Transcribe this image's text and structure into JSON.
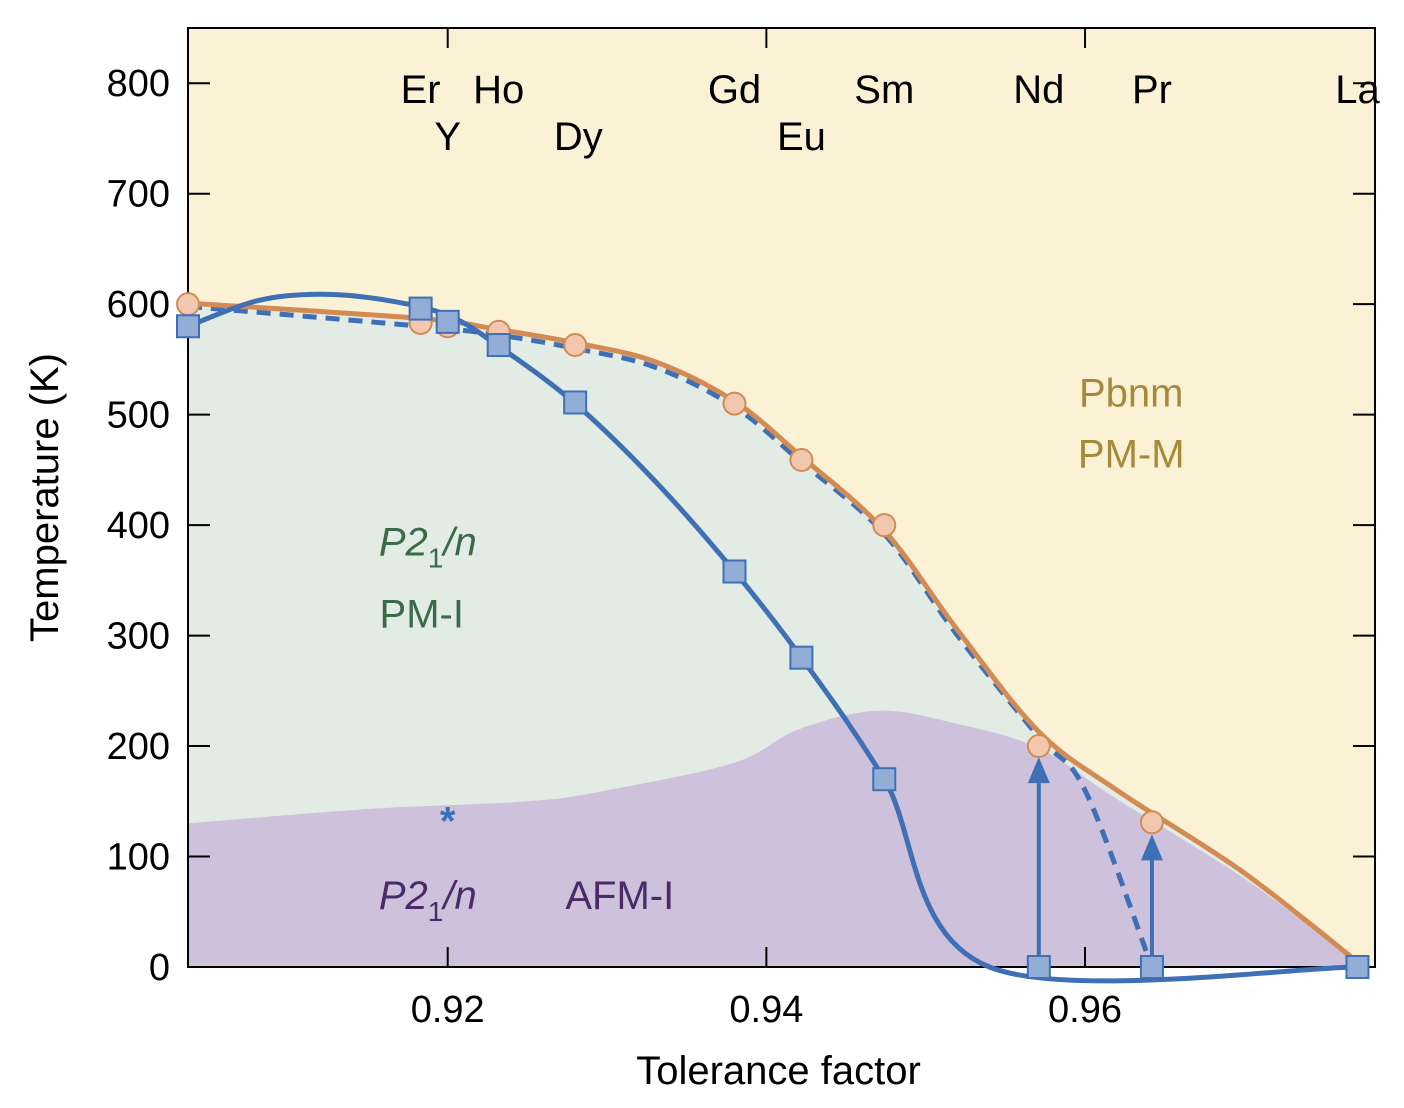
{
  "chart_data": {
    "type": "line",
    "xlabel": "Tolerance factor",
    "ylabel": "Temperature (K)",
    "xlim": [
      0.9037,
      0.9782
    ],
    "ylim": [
      0,
      850
    ],
    "x_ticks": [
      0.92,
      0.94,
      0.96
    ],
    "x_tick_labels": [
      "0.92",
      "0.94",
      "0.96"
    ],
    "y_ticks": [
      0,
      100,
      200,
      300,
      400,
      500,
      600,
      700,
      800
    ],
    "y_tick_labels": [
      "0",
      "100",
      "200",
      "300",
      "400",
      "500",
      "600",
      "700",
      "800"
    ],
    "element_labels": [
      {
        "text": "Er",
        "x": 0.9183,
        "row": 1
      },
      {
        "text": "Ho",
        "x": 0.9232,
        "row": 1
      },
      {
        "text": "Gd",
        "x": 0.938,
        "row": 1
      },
      {
        "text": "Sm",
        "x": 0.9474,
        "row": 1
      },
      {
        "text": "Nd",
        "x": 0.9571,
        "row": 1
      },
      {
        "text": "Pr",
        "x": 0.9642,
        "row": 1
      },
      {
        "text": "La",
        "x": 0.9771,
        "row": 1
      },
      {
        "text": "Y",
        "x": 0.92,
        "row": 2
      },
      {
        "text": "Dy",
        "x": 0.9282,
        "row": 2
      },
      {
        "text": "Eu",
        "x": 0.9422,
        "row": 2
      }
    ],
    "regions": [
      {
        "id": "pbnm",
        "lines": [
          "Pbnm",
          "PM-M"
        ],
        "color": "#A7893A",
        "x": 0.9629,
        "y": [
          520,
          465
        ]
      },
      {
        "id": "p21n-pmi",
        "lines": [
          "P2",
          "1",
          "/n",
          "PM-I"
        ],
        "color": "#3A6B48",
        "x": 0.919,
        "y": [
          385,
          320
        ]
      },
      {
        "id": "p21n-afmi",
        "lines": [
          "P2",
          "1",
          "/n",
          "AFM-I"
        ],
        "color": "#4A2B68",
        "x": 0.919,
        "y": [
          65,
          65
        ]
      }
    ],
    "annotation_star": {
      "text": "*",
      "x": 0.92,
      "y": 140
    },
    "colors": {
      "pm_m_background": "#FBF2D6",
      "pm_i_region": "#E3ECE4",
      "afm_i_region": "#CEC1DB",
      "orange_line": "#D38B54",
      "blue_line": "#3F6FB5",
      "circle_fill": "#F1C8AF",
      "square_fill": "#92AED6"
    },
    "series": [
      {
        "kind": "orange-boundary",
        "style": "solid",
        "points": [
          [
            0.9037,
            601
          ],
          [
            0.9183,
            587
          ],
          [
            0.9232,
            577
          ],
          [
            0.928,
            565
          ],
          [
            0.933,
            548
          ],
          [
            0.938,
            512
          ],
          [
            0.9422,
            462
          ],
          [
            0.9474,
            395
          ],
          [
            0.952,
            305
          ],
          [
            0.9571,
            213
          ],
          [
            0.962,
            160
          ],
          [
            0.97,
            85
          ],
          [
            0.9775,
            0
          ]
        ]
      },
      {
        "kind": "orange-circles",
        "points": [
          [
            0.9037,
            600
          ],
          [
            0.9183,
            583
          ],
          [
            0.92,
            580
          ],
          [
            0.9232,
            575
          ],
          [
            0.928,
            563
          ],
          [
            0.938,
            510
          ],
          [
            0.9422,
            459
          ],
          [
            0.9474,
            400
          ],
          [
            0.9571,
            200
          ],
          [
            0.9642,
            131
          ]
        ]
      },
      {
        "kind": "blue-dashed",
        "style": "dashed",
        "points": [
          [
            0.9037,
            598
          ],
          [
            0.9183,
            580
          ],
          [
            0.9232,
            572
          ],
          [
            0.928,
            560
          ],
          [
            0.933,
            543
          ],
          [
            0.938,
            507
          ],
          [
            0.9422,
            457
          ],
          [
            0.9474,
            392
          ],
          [
            0.952,
            300
          ],
          [
            0.9571,
            208
          ],
          [
            0.96,
            160
          ],
          [
            0.9642,
            0
          ]
        ]
      },
      {
        "kind": "blue-solid",
        "style": "solid",
        "points": [
          [
            0.9037,
            580
          ],
          [
            0.908,
            603
          ],
          [
            0.912,
            609
          ],
          [
            0.916,
            604
          ],
          [
            0.92,
            590
          ],
          [
            0.9232,
            562
          ],
          [
            0.928,
            510
          ],
          [
            0.933,
            440
          ],
          [
            0.938,
            358
          ],
          [
            0.9422,
            280
          ],
          [
            0.9474,
            170
          ],
          [
            0.954,
            0
          ],
          [
            0.9771,
            0
          ]
        ]
      },
      {
        "kind": "blue-squares",
        "points": [
          [
            0.9037,
            580
          ],
          [
            0.9183,
            596
          ],
          [
            0.92,
            584
          ],
          [
            0.9232,
            563
          ],
          [
            0.928,
            511
          ],
          [
            0.938,
            358
          ],
          [
            0.9422,
            280
          ],
          [
            0.9474,
            170
          ],
          [
            0.9571,
            0
          ],
          [
            0.9642,
            0
          ],
          [
            0.9771,
            0
          ]
        ]
      },
      {
        "kind": "afm-boundary",
        "points": [
          [
            0.9037,
            130
          ],
          [
            0.915,
            143
          ],
          [
            0.925,
            150
          ],
          [
            0.93,
            160
          ],
          [
            0.938,
            185
          ],
          [
            0.942,
            215
          ],
          [
            0.947,
            232
          ],
          [
            0.952,
            220
          ],
          [
            0.9571,
            198
          ],
          [
            0.962,
            152
          ],
          [
            0.97,
            80
          ],
          [
            0.9775,
            0
          ]
        ]
      }
    ],
    "arrows": [
      {
        "x": 0.9571,
        "from": 0,
        "to": 190
      },
      {
        "x": 0.9642,
        "from": 0,
        "to": 120
      }
    ]
  }
}
